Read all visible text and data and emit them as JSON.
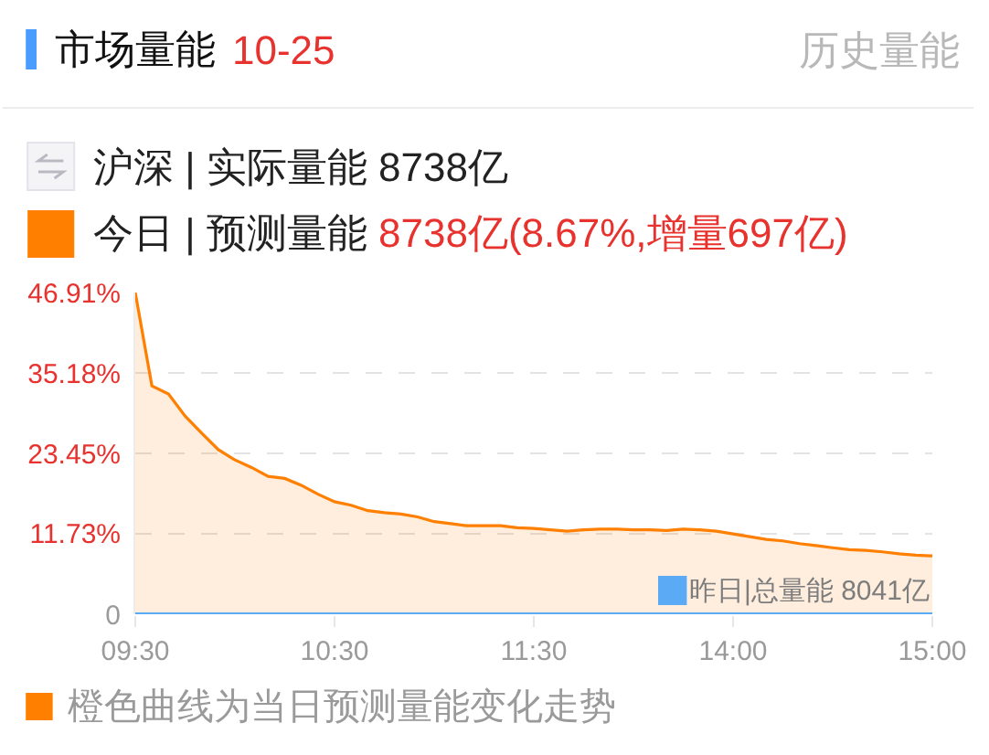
{
  "chart_data": {
    "type": "area",
    "title": "市场量能",
    "subtitle": "10-25",
    "annotations": [
      "历史量能",
      "沪深 | 实际量能 8738亿",
      "8738亿(8.67%,增量697亿)",
      "橙色曲线为当日预测量能变化走势"
    ],
    "categories": [
      "09:30",
      null,
      null,
      null,
      null,
      null,
      null,
      null,
      null,
      null,
      null,
      null,
      "10:30",
      null,
      null,
      null,
      null,
      null,
      null,
      null,
      null,
      null,
      null,
      null,
      "11:30",
      null,
      null,
      null,
      null,
      null,
      null,
      null,
      null,
      null,
      null,
      null,
      "14:00",
      null,
      null,
      null,
      null,
      null,
      null,
      null,
      null,
      null,
      null,
      null,
      "15:00"
    ],
    "series": [
      {
        "name": "今日 | 预测量能",
        "color": "#ff7f00",
        "values": [
          46.9,
          33.3,
          32.1,
          28.9,
          26.4,
          24.0,
          22.5,
          21.4,
          20.1,
          19.8,
          18.8,
          17.5,
          16.4,
          15.9,
          15.1,
          14.8,
          14.6,
          14.2,
          13.5,
          13.2,
          12.9,
          12.9,
          12.9,
          12.6,
          12.5,
          12.3,
          12.1,
          12.3,
          12.4,
          12.4,
          12.3,
          12.3,
          12.2,
          12.4,
          12.3,
          12.1,
          11.7,
          11.3,
          10.9,
          10.7,
          10.3,
          10.0,
          9.7,
          9.4,
          9.3,
          9.1,
          8.8,
          8.6,
          8.5
        ]
      },
      {
        "name": "昨日|总量能 8041亿",
        "type": "line",
        "color": "#5aaaf5",
        "values": [
          0,
          0,
          0,
          0,
          0,
          0,
          0,
          0,
          0,
          0,
          0,
          0,
          0,
          0,
          0,
          0,
          0,
          0,
          0,
          0,
          0,
          0,
          0,
          0,
          0,
          0,
          0,
          0,
          0,
          0,
          0,
          0,
          0,
          0,
          0,
          0,
          0,
          0,
          0,
          0,
          0,
          0,
          0,
          0,
          0,
          0,
          0,
          0,
          0
        ]
      }
    ],
    "ylim": [
      0,
      46.91
    ],
    "yticks": [
      0,
      {
        "value": 11.73,
        "label": "11.73%"
      },
      {
        "value": 23.45,
        "label": "23.45%"
      },
      {
        "value": 35.18,
        "label": "35.18%"
      },
      {
        "value": 46.91,
        "label": "46.91%"
      }
    ],
    "grid": "y",
    "legend": "top"
  }
}
